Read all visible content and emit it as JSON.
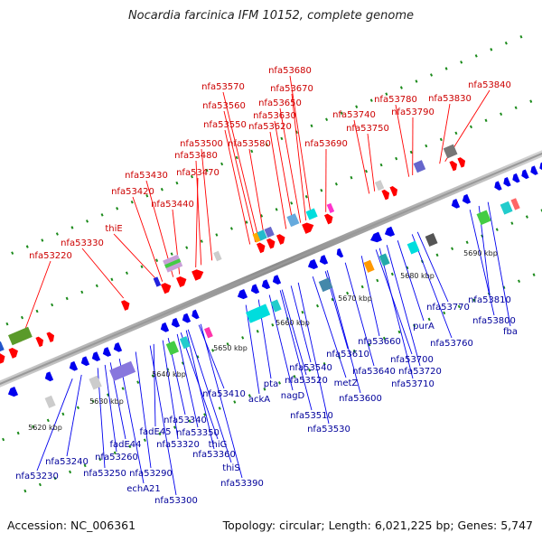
{
  "title": "Nocardia farcinica IFM 10152, complete genome",
  "footer": {
    "accession": "Accession: NC_006361",
    "summary": "Topology: circular; Length: 6,021,225 bp; Genes: 5,747"
  },
  "colors": {
    "forward_label": "#cc0000",
    "reverse_label": "#00009a",
    "forward_gene": "#ff0000",
    "reverse_gene": "#0000ee",
    "backbone": "#999999",
    "dots": "#1a8a1a"
  },
  "ruler": [
    "5620 kbp",
    "5630 kbp",
    "5640 kbp",
    "5650 kbp",
    "5660 kbp",
    "5670 kbp",
    "5680 kbp",
    "5690 kbp"
  ],
  "forward_labels": [
    "nfa53220",
    "nfa53330",
    "thiE",
    "nfa53420",
    "nfa53430",
    "nfa53440",
    "nfa53470",
    "nfa53480",
    "nfa53500",
    "nfa53550",
    "nfa53560",
    "nfa53570",
    "nfa53580",
    "nfa53620",
    "nfa53630",
    "nfa53650",
    "nfa53670",
    "nfa53680",
    "nfa53690",
    "nfa53740",
    "nfa53750",
    "nfa53780",
    "nfa53790",
    "nfa53830",
    "nfa53840"
  ],
  "reverse_labels": [
    "nfa53230",
    "nfa53240",
    "nfa53250",
    "nfa53260",
    "fadE44",
    "echA21",
    "nfa53290",
    "fadE45",
    "nfa53300",
    "nfa53320",
    "nfa53340",
    "nfa53350",
    "thiG",
    "nfa53360",
    "thiS",
    "nfa53390",
    "nfa53410",
    "ackA",
    "pta",
    "nagD",
    "nfa53520",
    "nfa53540",
    "nfa53510",
    "nfa53530",
    "metZ",
    "nfa53610",
    "nfa53600",
    "nfa53640",
    "nfa53660",
    "nfa53700",
    "nfa53720",
    "nfa53710",
    "purA",
    "nfa53760",
    "nfa53770",
    "nfa53800",
    "nfa53810",
    "fba"
  ]
}
